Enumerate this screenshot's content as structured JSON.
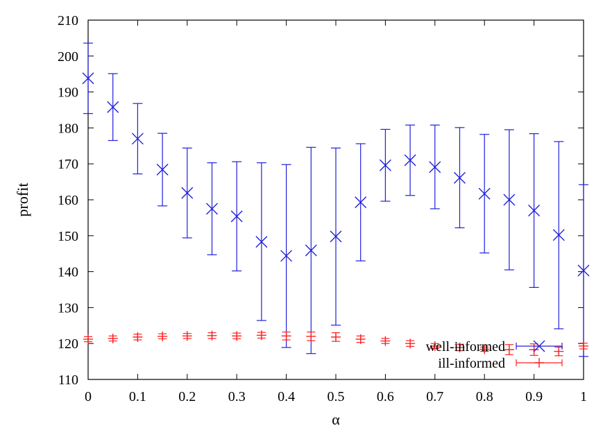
{
  "chart_data": {
    "type": "scatter",
    "xlabel": "α",
    "ylabel": "profit",
    "xlim": [
      0,
      1
    ],
    "ylim": [
      110,
      210
    ],
    "x_ticks": [
      "0",
      "0.1",
      "0.2",
      "0.3",
      "0.4",
      "0.5",
      "0.6",
      "0.7",
      "0.8",
      "0.9",
      "1"
    ],
    "y_ticks": [
      "110",
      "120",
      "130",
      "140",
      "150",
      "160",
      "170",
      "180",
      "190",
      "200",
      "210"
    ],
    "grid": false,
    "legend_position": "bottom-right",
    "series": [
      {
        "name": "well-informed",
        "color": "#1f1fdc",
        "marker": "x",
        "x": [
          0,
          0.05,
          0.1,
          0.15,
          0.2,
          0.25,
          0.3,
          0.35,
          0.4,
          0.45,
          0.5,
          0.55,
          0.6,
          0.65,
          0.7,
          0.75,
          0.8,
          0.85,
          0.9,
          0.95,
          1
        ],
        "y": [
          193.8,
          185.8,
          177,
          168.4,
          161.9,
          157.5,
          155.4,
          148.3,
          144.4,
          145.9,
          149.8,
          159.3,
          169.6,
          171,
          169.1,
          166.1,
          161.7,
          160,
          157,
          150.2,
          140.3
        ],
        "y_low": [
          184,
          176.5,
          167.2,
          158.3,
          149.4,
          144.7,
          140.2,
          126.4,
          118.9,
          117.2,
          125.1,
          143,
          159.6,
          161.2,
          157.5,
          152.2,
          145.2,
          140.5,
          135.6,
          124.1,
          116.4
        ],
        "y_high": [
          203.6,
          195.1,
          186.8,
          178.5,
          174.4,
          170.3,
          170.6,
          170.3,
          169.8,
          174.6,
          174.4,
          175.6,
          179.6,
          180.8,
          180.8,
          180.1,
          178.2,
          179.5,
          178.4,
          176.2,
          164.2
        ]
      },
      {
        "name": "ill-informed",
        "color": "#ff1f1f",
        "marker": "+",
        "x": [
          0,
          0.05,
          0.1,
          0.15,
          0.2,
          0.25,
          0.3,
          0.35,
          0.4,
          0.45,
          0.5,
          0.55,
          0.6,
          0.65,
          0.7,
          0.75,
          0.8,
          0.85,
          0.9,
          0.95,
          1
        ],
        "y": [
          121.2,
          121.4,
          121.8,
          122,
          122.1,
          122.2,
          122.1,
          122.3,
          122.1,
          122,
          121.8,
          121.2,
          120.7,
          120,
          119.3,
          118.9,
          118.4,
          118.3,
          118.3,
          117.8,
          119.3
        ],
        "y_low": [
          120.5,
          120.7,
          121,
          121.3,
          121.4,
          121.4,
          121.3,
          121.5,
          121,
          120.8,
          120.6,
          120.3,
          120,
          119.2,
          118.6,
          118,
          117.8,
          116.9,
          116.7,
          116.6,
          118.5
        ],
        "y_high": [
          121.9,
          122.1,
          122.6,
          122.7,
          122.8,
          123,
          122.9,
          123.1,
          123.2,
          123.2,
          123,
          122.1,
          121.4,
          120.8,
          120,
          119.8,
          119,
          119.7,
          119.9,
          119,
          120.1
        ]
      }
    ]
  }
}
